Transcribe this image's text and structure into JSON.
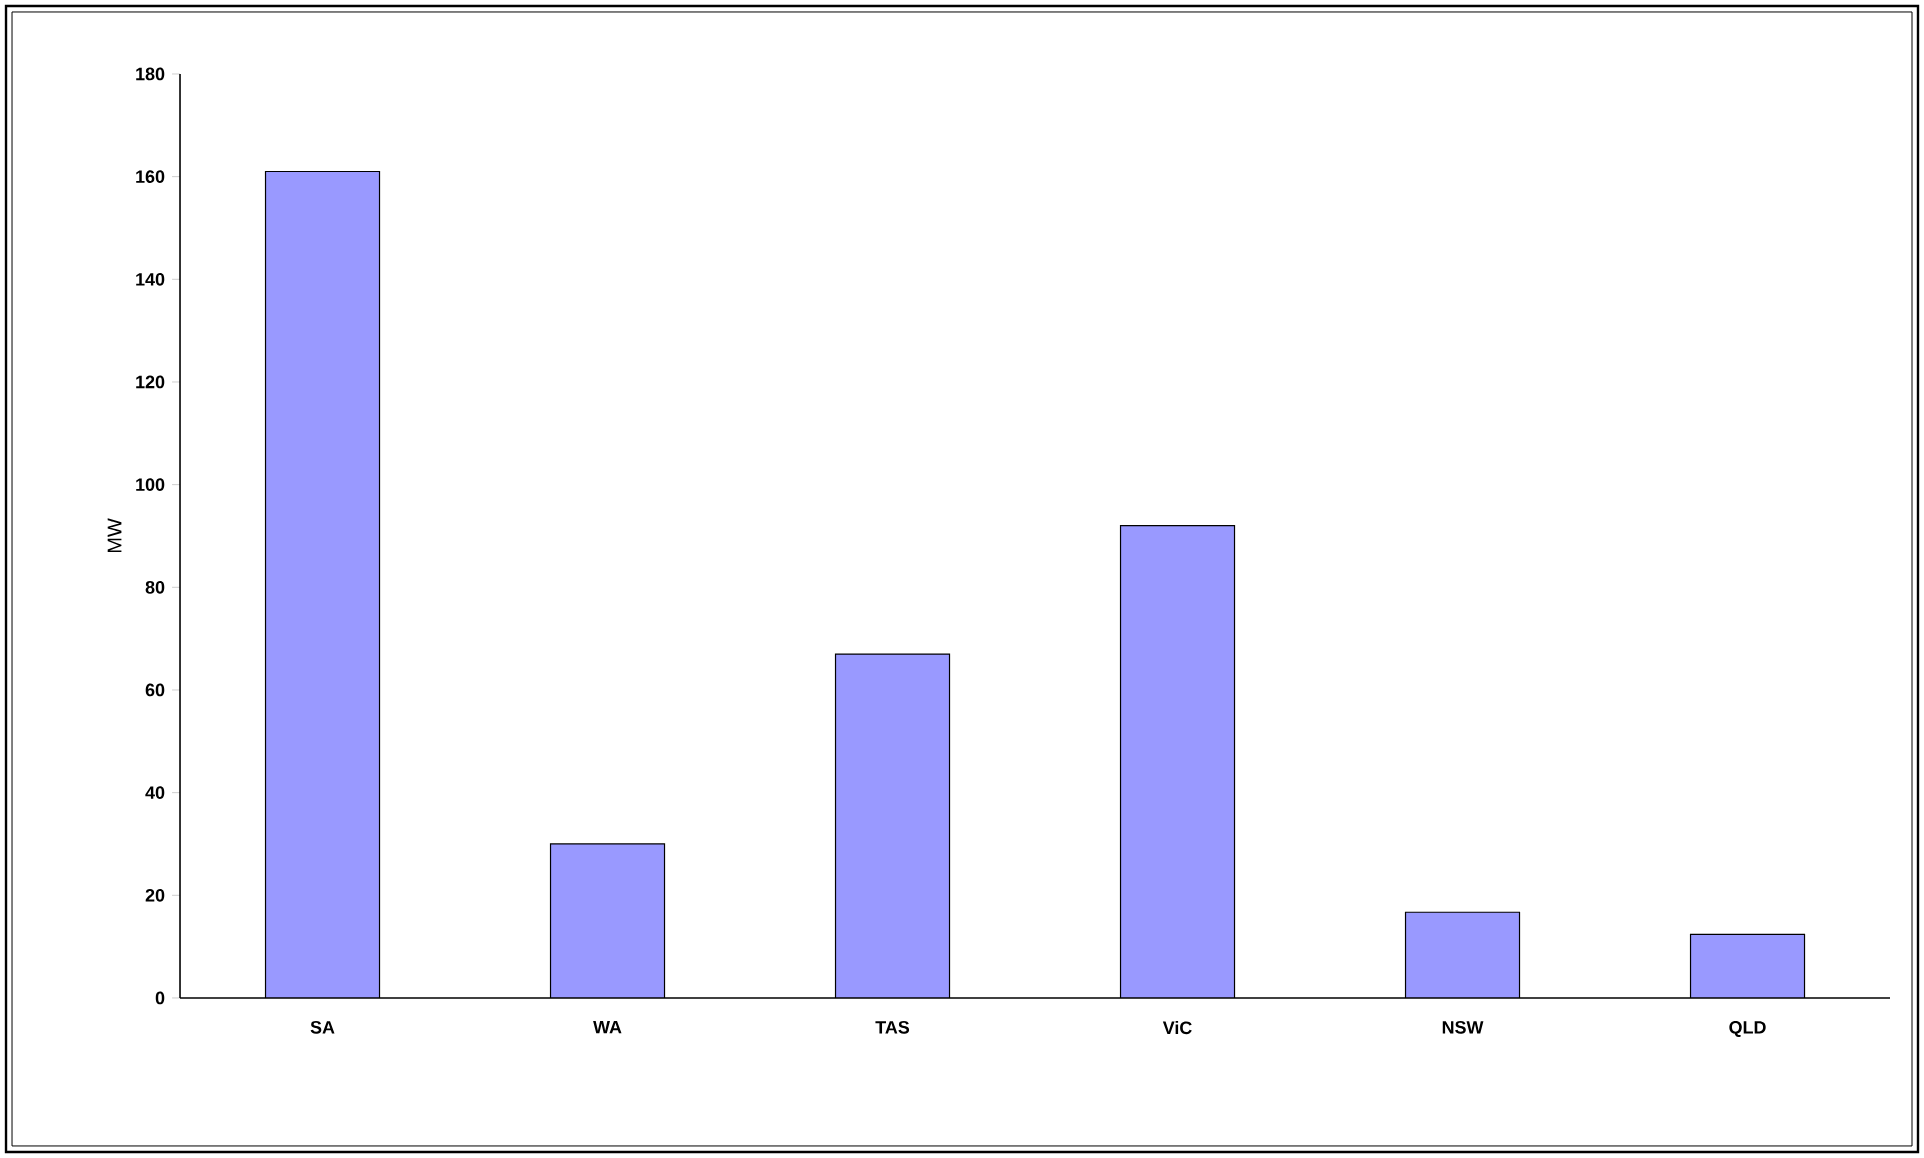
{
  "chart_data": {
    "type": "bar",
    "ylabel": "MW",
    "categories": [
      "SA",
      "WA",
      "TAS",
      "ViC",
      "NSW",
      "QLD"
    ],
    "values": [
      161,
      30,
      67,
      92,
      16.7,
      12.4
    ],
    "color": "#9999ff",
    "ylim": [
      0,
      180
    ],
    "yticks": [
      0,
      20,
      40,
      60,
      80,
      100,
      120,
      140,
      160,
      180
    ]
  }
}
